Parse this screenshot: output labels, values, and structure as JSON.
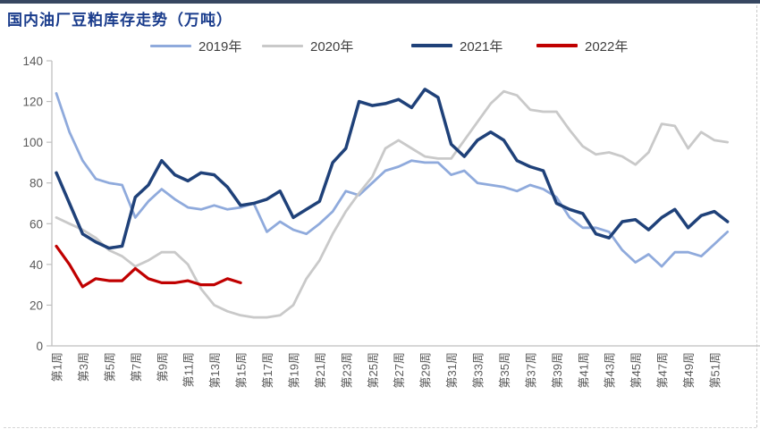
{
  "chart_data": {
    "type": "line",
    "title": "国内油厂豆粕库存走势（万吨）",
    "xlabel": "",
    "ylabel": "",
    "ylim": [
      0,
      140
    ],
    "y_ticks": [
      0,
      20,
      40,
      60,
      80,
      100,
      120,
      140
    ],
    "x_weeks_total": 52,
    "x_tick_labels": [
      "第1周",
      "第3周",
      "第5周",
      "第7周",
      "第9周",
      "第11周",
      "第13周",
      "第15周",
      "第17周",
      "第19周",
      "第21周",
      "第23周",
      "第25周",
      "第27周",
      "第29周",
      "第31周",
      "第33周",
      "第35周",
      "第37周",
      "第39周",
      "第41周",
      "第43周",
      "第45周",
      "第47周",
      "第49周",
      "第51周"
    ],
    "grid": false,
    "legend_position": "top",
    "series": [
      {
        "name": "2019年",
        "color": "#8FAADC",
        "start_week": 1,
        "values": [
          124,
          105,
          91,
          82,
          80,
          79,
          63,
          71,
          77,
          72,
          68,
          67,
          69,
          67,
          68,
          70,
          56,
          61,
          57,
          55,
          60,
          66,
          76,
          74,
          80,
          86,
          88,
          91,
          90,
          90,
          84,
          86,
          80,
          79,
          78,
          76,
          79,
          77,
          73,
          63,
          58,
          58,
          56,
          47,
          41,
          45,
          39,
          46,
          46,
          44,
          50,
          56
        ]
      },
      {
        "name": "2020年",
        "color": "#C9C9C9",
        "start_week": 1,
        "values": [
          63,
          60,
          57,
          53,
          47,
          44,
          39,
          42,
          46,
          46,
          40,
          28,
          20,
          17,
          15,
          14,
          14,
          15,
          20,
          33,
          42,
          55,
          66,
          75,
          83,
          97,
          101,
          97,
          93,
          92,
          92,
          101,
          110,
          119,
          125,
          123,
          116,
          115,
          115,
          106,
          98,
          94,
          95,
          93,
          89,
          95,
          109,
          108,
          97,
          105,
          101,
          100
        ]
      },
      {
        "name": "2021年",
        "color": "#1F4179",
        "start_week": 1,
        "values": [
          85,
          70,
          55,
          51,
          48,
          49,
          73,
          79,
          91,
          84,
          81,
          85,
          84,
          78,
          69,
          70,
          72,
          76,
          63,
          67,
          71,
          90,
          97,
          120,
          118,
          119,
          121,
          117,
          126,
          122,
          99,
          93,
          101,
          105,
          101,
          91,
          88,
          86,
          70,
          67,
          65,
          55,
          53,
          61,
          62,
          57,
          63,
          67,
          58,
          64,
          66,
          61
        ]
      },
      {
        "name": "2022年",
        "color": "#C00000",
        "start_week": 1,
        "values": [
          49,
          40,
          29,
          33,
          32,
          32,
          38,
          33,
          31,
          31,
          32,
          30,
          30,
          33,
          31
        ]
      }
    ]
  },
  "style": {
    "axis_color": "#BFBFBF",
    "tick_text_color": "#595959",
    "title_color": "#1a3c8c",
    "legend_text_color": "#3f3f3f",
    "background": "#ffffff"
  }
}
